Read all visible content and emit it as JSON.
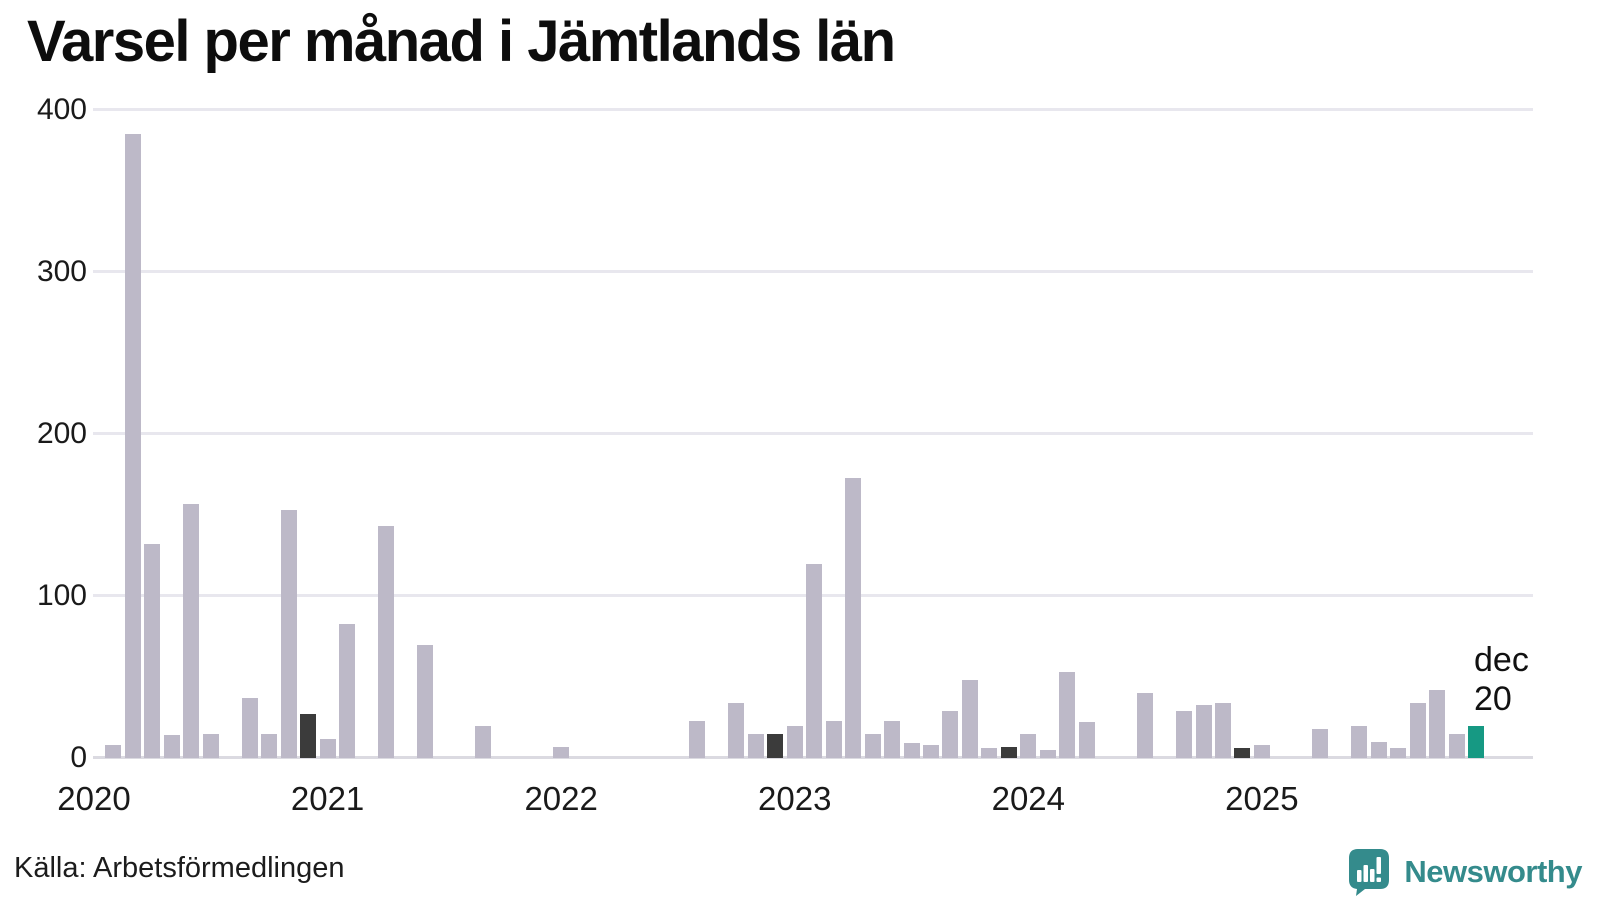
{
  "branding": {
    "name": "Newsworthy",
    "logo_icon": "speech-bubble-bar-chart-icon",
    "logo_color": "#348b8c"
  },
  "colors": {
    "bar": "#bdb9c8",
    "december_bar": "#3b3b3b",
    "accent_bar": "#169983",
    "grid": "#e8e7ee",
    "baseline": "#dbdae1",
    "text": "#111111"
  },
  "chart_data": {
    "type": "bar",
    "title": "Varsel per månad i Jämtlands län",
    "source": "Källa: Arbetsförmedlingen",
    "series_name": "Varsel",
    "x": [
      "2020-01",
      "2020-02",
      "2020-03",
      "2020-04",
      "2020-05",
      "2020-06",
      "2020-07",
      "2020-08",
      "2020-09",
      "2020-10",
      "2020-11",
      "2020-12",
      "2021-01",
      "2021-02",
      "2021-03",
      "2021-04",
      "2021-05",
      "2021-06",
      "2021-07",
      "2021-08",
      "2021-09",
      "2021-10",
      "2021-11",
      "2021-12",
      "2022-01",
      "2022-02",
      "2022-03",
      "2022-04",
      "2022-05",
      "2022-06",
      "2022-07",
      "2022-08",
      "2022-09",
      "2022-10",
      "2022-11",
      "2022-12",
      "2023-01",
      "2023-02",
      "2023-03",
      "2023-04",
      "2023-05",
      "2023-06",
      "2023-07",
      "2023-08",
      "2023-09",
      "2023-10",
      "2023-11",
      "2023-12",
      "2024-01",
      "2024-02",
      "2024-03",
      "2024-04",
      "2024-05",
      "2024-06",
      "2024-07",
      "2024-08",
      "2024-09",
      "2024-10",
      "2024-11",
      "2024-12",
      "2025-01",
      "2025-02",
      "2025-03",
      "2025-04",
      "2025-05",
      "2025-06",
      "2025-07",
      "2025-08",
      "2025-09",
      "2025-10",
      "2025-11",
      "2025-12"
    ],
    "values": [
      0,
      8,
      385,
      132,
      14,
      157,
      15,
      0,
      37,
      15,
      153,
      27,
      12,
      83,
      0,
      143,
      0,
      70,
      0,
      0,
      20,
      0,
      0,
      0,
      7,
      0,
      0,
      0,
      0,
      0,
      0,
      23,
      0,
      34,
      15,
      15,
      20,
      120,
      23,
      173,
      15,
      23,
      9,
      8,
      29,
      48,
      6,
      7,
      15,
      5,
      53,
      22,
      0,
      0,
      40,
      0,
      29,
      33,
      34,
      6,
      8,
      0,
      0,
      18,
      0,
      20,
      10,
      6,
      34,
      42,
      15,
      20
    ],
    "ylim": [
      0,
      400
    ],
    "yticks": [
      0,
      100,
      200,
      300,
      400
    ],
    "grid": true,
    "legend": false,
    "year_tick_labels": [
      "2020",
      "2021",
      "2022",
      "2023",
      "2024",
      "2025"
    ],
    "year_tick_month_indices": [
      0,
      12,
      24,
      36,
      48,
      60
    ],
    "dark_month_indices": [
      11,
      35,
      47,
      59
    ],
    "accent_month_index": 71,
    "annotation": {
      "month_label": "dec",
      "value_label": "20"
    }
  }
}
